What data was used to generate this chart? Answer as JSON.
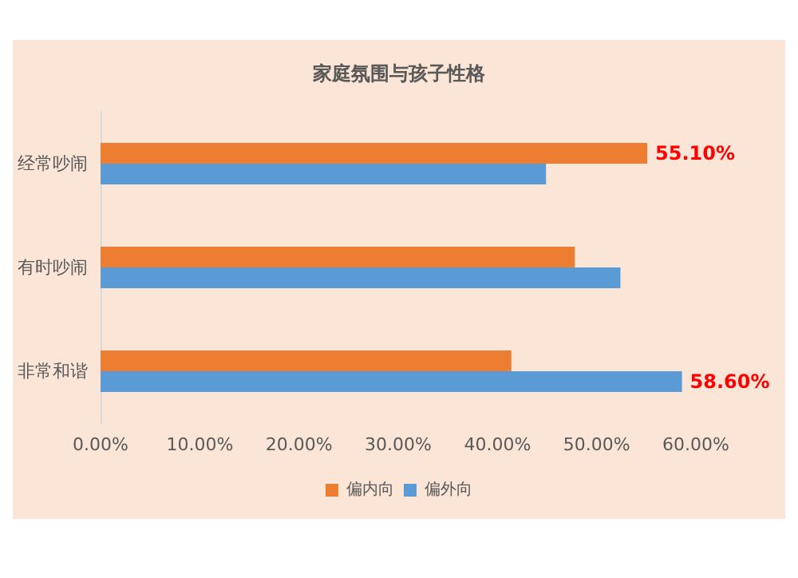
{
  "chart_data": {
    "type": "bar",
    "orientation": "horizontal",
    "title": "家庭氛围与孩子性格",
    "categories": [
      "经常吵闹",
      "有时吵闹",
      "非常和谐"
    ],
    "series": [
      {
        "name": "偏内向",
        "color": "#ed7d31",
        "values": [
          55.1,
          47.8,
          41.4
        ],
        "value_labels": [
          "55.10%",
          null,
          null
        ]
      },
      {
        "name": "偏外向",
        "color": "#5b9bd5",
        "values": [
          44.9,
          52.4,
          58.6
        ],
        "value_labels": [
          null,
          null,
          "58.60%"
        ]
      }
    ],
    "xlim": [
      0,
      60
    ],
    "xticks": [
      {
        "value": 0,
        "label": "0.00%"
      },
      {
        "value": 10,
        "label": "10.00%"
      },
      {
        "value": 20,
        "label": "20.00%"
      },
      {
        "value": 30,
        "label": "30.00%"
      },
      {
        "value": 40,
        "label": "40.00%"
      },
      {
        "value": 50,
        "label": "50.00%"
      },
      {
        "value": 60,
        "label": "60.00%"
      }
    ],
    "grid": false,
    "legend": "bottom"
  }
}
